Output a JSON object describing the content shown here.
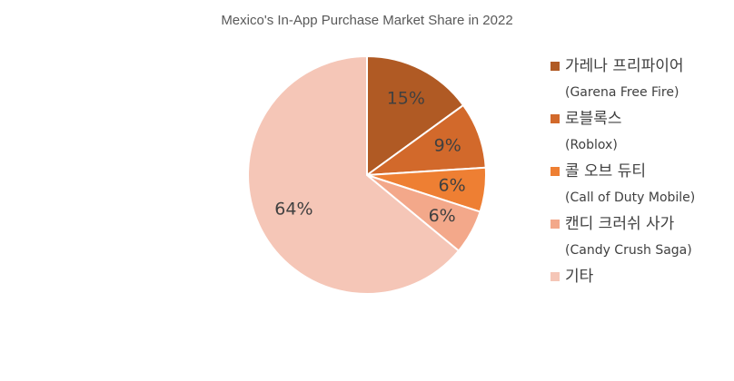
{
  "chart_data": {
    "type": "pie",
    "title": "Mexico's In-App Purchase Market Share in 2022",
    "categories": [
      [
        "가레나 프리파이어",
        "(Garena Free Fire)"
      ],
      [
        "로블록스",
        "(Roblox)"
      ],
      [
        "콜 오브 듀티",
        "(Call of Duty Mobile)"
      ],
      [
        "캔디 크러쉬 사가",
        "(Candy Crush Saga)"
      ],
      [
        "기타"
      ]
    ],
    "values": [
      15,
      9,
      6,
      6,
      64
    ],
    "value_labels": [
      "15%",
      "9%",
      "6%",
      "6%",
      "64%"
    ],
    "colors": [
      "#b05a24",
      "#d2692b",
      "#ee7f33",
      "#f3a88a",
      "#f5c6b7"
    ],
    "legend": "right"
  }
}
